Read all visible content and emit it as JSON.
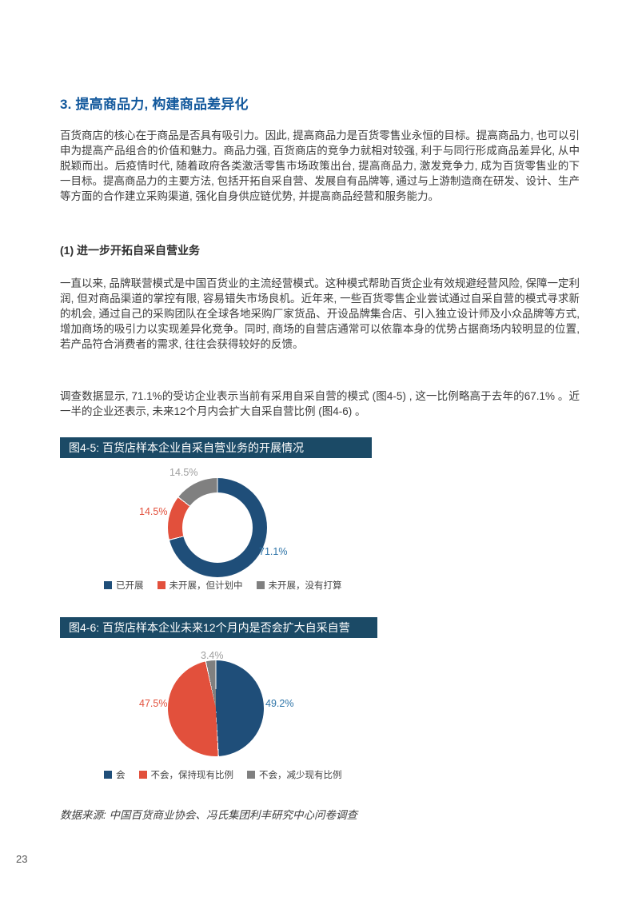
{
  "document": {
    "section_heading": "3. 提高商品力, 构建商品差异化",
    "paragraph_1": "百货商店的核心在于商品是否具有吸引力。因此, 提高商品力是百货零售业永恒的目标。提高商品力, 也可以引申为提高产品组合的价值和魅力。商品力强, 百货商店的竞争力就相对较强, 利于与同行形成商品差异化, 从中脱颖而出。后疫情时代, 随着政府各类激活零售市场政策出台, 提高商品力, 激发竞争力, 成为百货零售业的下一目标。提高商品力的主要方法, 包括开拓自采自营、发展自有品牌等, 通过与上游制造商在研发、设计、生产等方面的合作建立采购渠道, 强化自身供应链优势, 并提高商品经营和服务能力。",
    "subsection_heading": "(1) 进一步开拓自采自营业务",
    "paragraph_2": "一直以来, 品牌联营模式是中国百货业的主流经营模式。这种模式帮助百货企业有效规避经营风险, 保障一定利润, 但对商品渠道的掌控有限, 容易错失市场良机。近年来, 一些百货零售企业尝试通过自采自营的模式寻求新的机会, 通过自己的采购团队在全球各地采购厂家货品、开设品牌集合店、引入独立设计师及小众品牌等方式, 增加商场的吸引力以实现差异化竞争。同时, 商场的自营店通常可以依靠本身的优势占据商场内较明显的位置, 若产品符合消费者的需求, 往往会获得较好的反馈。",
    "paragraph_3": "调查数据显示, 71.1%的受访企业表示当前有采用自采自营的模式 (图4-5) , 这一比例略高于去年的67.1% 。近一半的企业还表示, 未来12个月内会扩大自采自营比例 (图4-6) 。",
    "data_source": "数据来源: 中国百货商业协会、冯氏集团利丰研究中心问卷调查",
    "page_number": "23"
  },
  "colors": {
    "heading_blue": "#12589C",
    "banner_background": "#1B4A66",
    "navy": "#1F4E79",
    "red": "#E2503C",
    "gray": "#808080"
  },
  "charts": [
    {
      "banner_title": "图4-5: 百货店样本企业自采自营业务的开展情况",
      "chart_data": {
        "type": "pie",
        "subtype": "donut",
        "categories": [
          "已开展",
          "未开展，但计划中",
          "未开展，没有打算"
        ],
        "values": [
          71.1,
          14.5,
          14.5
        ],
        "data_labels": [
          "71.1%",
          "14.5%",
          "14.5%"
        ],
        "colors": [
          "#1F4E79",
          "#E2503C",
          "#808080"
        ],
        "label_colors": [
          "#2E74A8",
          "#E2503C",
          "#9E9E9E"
        ],
        "start_angle_deg": 0,
        "direction": "clockwise",
        "legend_position": "bottom"
      }
    },
    {
      "banner_title": "图4-6: 百货店样本企业未来12个月内是否会扩大自采自营",
      "chart_data": {
        "type": "pie",
        "subtype": "pie",
        "categories": [
          "会",
          "不会，保持现有比例",
          "不会，减少现有比例"
        ],
        "values": [
          49.2,
          47.5,
          3.4
        ],
        "data_labels": [
          "49.2%",
          "47.5%",
          "3.4%"
        ],
        "colors": [
          "#1F4E79",
          "#E2503C",
          "#808080"
        ],
        "label_colors": [
          "#2E74A8",
          "#E2503C",
          "#9E9E9E"
        ],
        "start_angle_deg": 0,
        "direction": "clockwise",
        "legend_position": "bottom"
      }
    }
  ]
}
